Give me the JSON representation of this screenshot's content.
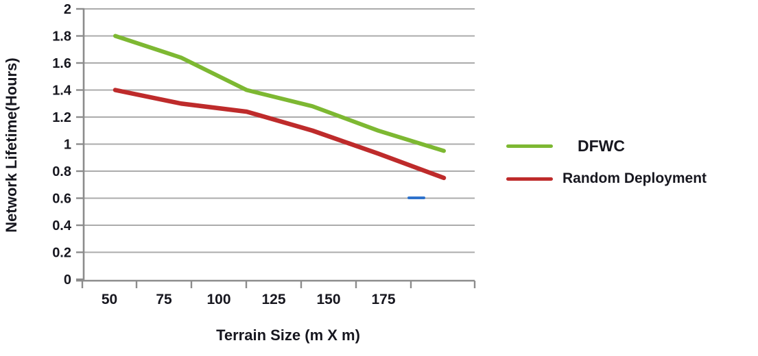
{
  "chart_data": {
    "type": "line",
    "title": "",
    "xlabel": "Terrain Size (m X m)",
    "ylabel": "Network Lifetime(Hours)",
    "categories": [
      50,
      75,
      100,
      125,
      150,
      175
    ],
    "x_tick_labels": [
      "50",
      "75",
      "100",
      "125",
      "150",
      "175"
    ],
    "y_tick_labels": [
      "0",
      "0.2",
      "0.4",
      "0.6",
      "0.8",
      "1",
      "1.2",
      "1.4",
      "1.6",
      "1.8",
      "2"
    ],
    "ylim": [
      0,
      2
    ],
    "y_step": 0.2,
    "grid": "horizontal",
    "legend_position": "right",
    "series": [
      {
        "name": "DFWC",
        "color": "#7db832",
        "values": [
          1.8,
          1.64,
          1.4,
          1.28,
          1.1,
          0.95
        ]
      },
      {
        "name": "Random Deployment",
        "color": "#be2b2b",
        "values": [
          1.4,
          1.3,
          1.24,
          1.1,
          0.93,
          0.75
        ]
      }
    ]
  },
  "colors": {
    "axis": "#8c8c8c",
    "gridline": "#ababab",
    "text": "#17171f",
    "artifact_blue": "#2e72cc"
  }
}
